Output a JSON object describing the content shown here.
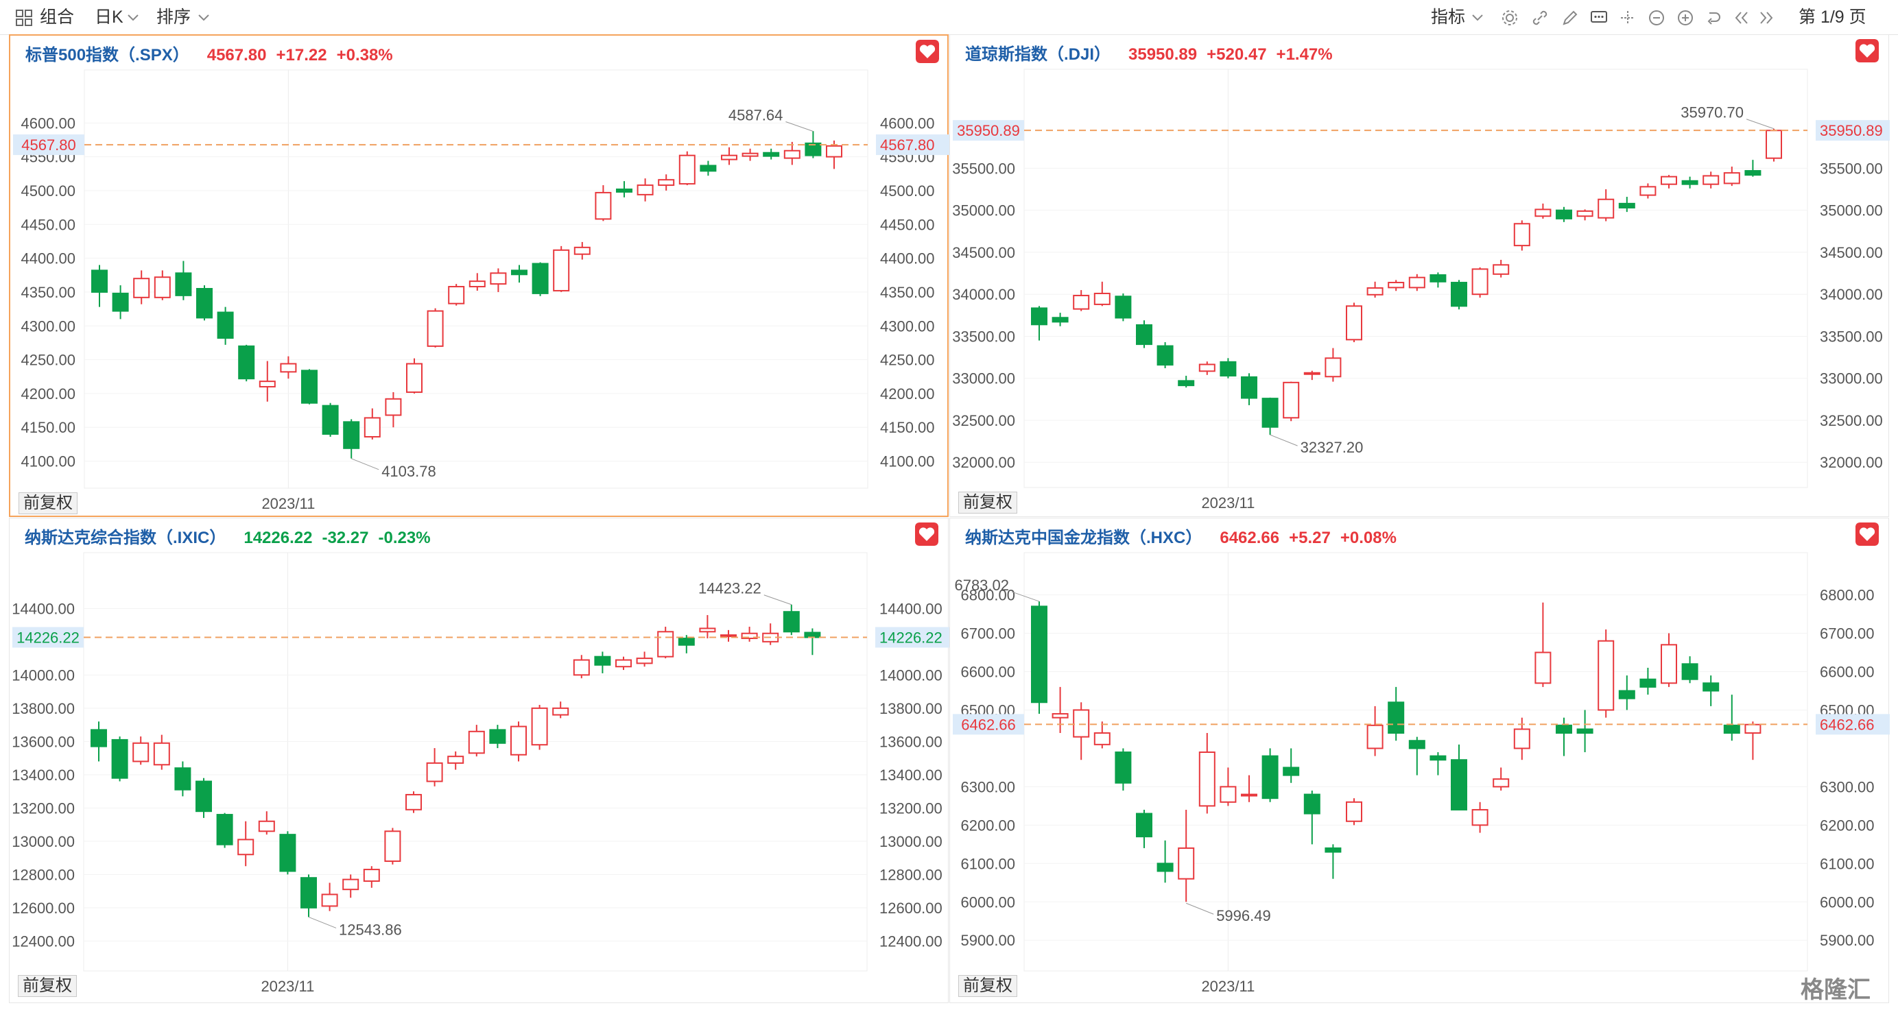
{
  "toolbar": {
    "combo_label": "组合",
    "period_label": "日K",
    "sort_label": "排序",
    "indicator_label": "指标",
    "page_label": "第 1/9 页"
  },
  "common": {
    "adjust_label": "前复权",
    "x_tick_label": "2023/11"
  },
  "colors": {
    "up": "#e8383d",
    "down": "#0aa04a",
    "title_blue": "#1f5fa8",
    "accent_orange": "#f5a35b",
    "grid": "#ececec",
    "price_line": "#f0a060",
    "badge_bg": "#dcebfa"
  },
  "icons": [
    "grid-icon",
    "chevron-down-icon",
    "gear-icon",
    "link-icon",
    "pencil-icon",
    "comment-icon",
    "crosshair-icon",
    "minus-circle-icon",
    "plus-circle-icon",
    "undo-icon",
    "double-left-icon",
    "double-right-icon",
    "heart-icon"
  ],
  "watermark": "格隆汇",
  "panels": [
    {
      "id": "spx",
      "name": "标普500指数（.SPX）",
      "last": "4567.80",
      "change": "+17.22",
      "pct": "+0.38%",
      "direction": "up",
      "last_label": "4567.80",
      "y_ticks": [
        "4600.00",
        "4550.00",
        "4500.00",
        "4450.00",
        "4400.00",
        "4350.00",
        "4300.00",
        "4250.00",
        "4200.00",
        "4150.00",
        "4100.00"
      ],
      "high_label": "4587.64",
      "low_label": "4103.78",
      "chart_data": {
        "type": "candlestick",
        "ylim": [
          4060,
          4650
        ],
        "high_value": 4587.64,
        "low_value": 4103.78,
        "current": 4567.8,
        "candles": [
          [
            4382,
            4350,
            4390,
            4328
          ],
          [
            4348,
            4322,
            4360,
            4310
          ],
          [
            4342,
            4370,
            4382,
            4332
          ],
          [
            4342,
            4372,
            4382,
            4338
          ],
          [
            4378,
            4345,
            4396,
            4338
          ],
          [
            4355,
            4312,
            4360,
            4308
          ],
          [
            4320,
            4282,
            4328,
            4272
          ],
          [
            4270,
            4222,
            4272,
            4218
          ],
          [
            4210,
            4218,
            4248,
            4188
          ],
          [
            4232,
            4244,
            4255,
            4222
          ],
          [
            4234,
            4186,
            4236,
            4184
          ],
          [
            4182,
            4140,
            4186,
            4136
          ],
          [
            4158,
            4119,
            4162,
            4104
          ],
          [
            4136,
            4164,
            4178,
            4132
          ],
          [
            4168,
            4192,
            4202,
            4150
          ],
          [
            4202,
            4244,
            4252,
            4200
          ],
          [
            4270,
            4322,
            4326,
            4268
          ],
          [
            4333,
            4358,
            4362,
            4330
          ],
          [
            4358,
            4366,
            4378,
            4352
          ],
          [
            4362,
            4378,
            4385,
            4350
          ],
          [
            4382,
            4376,
            4390,
            4364
          ],
          [
            4392,
            4348,
            4394,
            4344
          ],
          [
            4352,
            4412,
            4418,
            4350
          ],
          [
            4406,
            4416,
            4424,
            4398
          ],
          [
            4458,
            4497,
            4508,
            4455
          ],
          [
            4502,
            4498,
            4514,
            4490
          ],
          [
            4494,
            4508,
            4518,
            4484
          ],
          [
            4508,
            4516,
            4524,
            4500
          ],
          [
            4510,
            4552,
            4558,
            4508
          ],
          [
            4537,
            4529,
            4544,
            4522
          ],
          [
            4546,
            4552,
            4564,
            4538
          ],
          [
            4551,
            4555,
            4562,
            4544
          ],
          [
            4556,
            4551,
            4562,
            4546
          ],
          [
            4548,
            4559,
            4572,
            4538
          ],
          [
            4570,
            4552,
            4588,
            4548
          ],
          [
            4550,
            4566,
            4574,
            4532
          ]
        ]
      }
    },
    {
      "id": "dji",
      "name": "道琼斯指数（.DJI）",
      "last": "35950.89",
      "change": "+520.47",
      "pct": "+1.47%",
      "direction": "up",
      "last_label": "35950.89",
      "y_ticks": [
        "35500.00",
        "35000.00",
        "34500.00",
        "34000.00",
        "33500.00",
        "33000.00",
        "32500.00",
        "32000.00"
      ],
      "high_label": "35970.70",
      "low_label": "32327.20",
      "chart_data": {
        "type": "candlestick",
        "ylim": [
          31700,
          36450
        ],
        "high_value": 35970.7,
        "low_value": 32327.2,
        "current": 35950.89,
        "candles": [
          [
            33835,
            33640,
            33860,
            33450
          ],
          [
            33722,
            33672,
            33780,
            33620
          ],
          [
            33825,
            33985,
            34050,
            33800
          ],
          [
            33880,
            34010,
            34150,
            33860
          ],
          [
            33975,
            33720,
            34010,
            33680
          ],
          [
            33635,
            33405,
            33690,
            33360
          ],
          [
            33385,
            33160,
            33430,
            33120
          ],
          [
            32970,
            32915,
            33030,
            32890
          ],
          [
            33085,
            33165,
            33200,
            33040
          ],
          [
            33195,
            33030,
            33240,
            33000
          ],
          [
            33015,
            32765,
            33060,
            32680
          ],
          [
            32760,
            32420,
            32770,
            32327
          ],
          [
            32530,
            32950,
            32960,
            32490
          ],
          [
            33050,
            33065,
            33090,
            32980
          ],
          [
            33020,
            33240,
            33360,
            32960
          ],
          [
            33460,
            33860,
            33900,
            33430
          ],
          [
            33995,
            34075,
            34150,
            33960
          ],
          [
            34080,
            34140,
            34170,
            34040
          ],
          [
            34080,
            34200,
            34240,
            34040
          ],
          [
            34230,
            34150,
            34260,
            34080
          ],
          [
            34140,
            33860,
            34170,
            33820
          ],
          [
            34000,
            34300,
            34320,
            33960
          ],
          [
            34240,
            34350,
            34410,
            34200
          ],
          [
            34580,
            34840,
            34880,
            34520
          ],
          [
            34930,
            35010,
            35080,
            34900
          ],
          [
            35000,
            34900,
            35040,
            34860
          ],
          [
            34930,
            34990,
            35010,
            34880
          ],
          [
            34910,
            35130,
            35250,
            34870
          ],
          [
            35080,
            35030,
            35160,
            34980
          ],
          [
            35180,
            35280,
            35320,
            35140
          ],
          [
            35310,
            35400,
            35420,
            35260
          ],
          [
            35350,
            35310,
            35400,
            35260
          ],
          [
            35310,
            35410,
            35460,
            35260
          ],
          [
            35320,
            35445,
            35520,
            35290
          ],
          [
            35470,
            35420,
            35600,
            35400
          ],
          [
            35620,
            35950,
            35970,
            35580
          ]
        ]
      }
    },
    {
      "id": "ixic",
      "name": "纳斯达克综合指数（.IXIC）",
      "last": "14226.22",
      "change": "-32.27",
      "pct": "-0.23%",
      "direction": "down",
      "last_label": "14226.22",
      "y_ticks": [
        "14400.00",
        "14000.00",
        "13800.00",
        "13600.00",
        "13400.00",
        "13200.00",
        "13000.00",
        "12800.00",
        "12600.00",
        "12400.00"
      ],
      "high_label": "14423.22",
      "low_label": "12543.86",
      "chart_data": {
        "type": "candlestick",
        "ylim": [
          12220,
          14620
        ],
        "high_value": 14423.22,
        "low_value": 12543.86,
        "current": 14226.22,
        "candles": [
          [
            13670,
            13570,
            13720,
            13480
          ],
          [
            13610,
            13380,
            13630,
            13360
          ],
          [
            13480,
            13590,
            13630,
            13460
          ],
          [
            13460,
            13590,
            13640,
            13430
          ],
          [
            13440,
            13310,
            13480,
            13270
          ],
          [
            13360,
            13180,
            13380,
            13140
          ],
          [
            13160,
            12980,
            13170,
            12960
          ],
          [
            12920,
            13010,
            13120,
            12850
          ],
          [
            13060,
            13120,
            13180,
            13040
          ],
          [
            13040,
            12820,
            13060,
            12800
          ],
          [
            12780,
            12600,
            12800,
            12544
          ],
          [
            12610,
            12680,
            12750,
            12580
          ],
          [
            12710,
            12770,
            12800,
            12660
          ],
          [
            12760,
            12830,
            12850,
            12720
          ],
          [
            12880,
            13060,
            13080,
            12860
          ],
          [
            13190,
            13280,
            13300,
            13170
          ],
          [
            13360,
            13470,
            13560,
            13330
          ],
          [
            13470,
            13510,
            13540,
            13430
          ],
          [
            13530,
            13660,
            13700,
            13510
          ],
          [
            13670,
            13590,
            13700,
            13560
          ],
          [
            13520,
            13690,
            13720,
            13480
          ],
          [
            13580,
            13800,
            13820,
            13550
          ],
          [
            13760,
            13800,
            13840,
            13740
          ],
          [
            14000,
            14090,
            14120,
            13980
          ],
          [
            14110,
            14060,
            14140,
            14010
          ],
          [
            14050,
            14090,
            14110,
            14030
          ],
          [
            14070,
            14100,
            14140,
            14050
          ],
          [
            14110,
            14260,
            14290,
            14100
          ],
          [
            14220,
            14180,
            14240,
            14130
          ],
          [
            14260,
            14280,
            14360,
            14220
          ],
          [
            14240,
            14240,
            14270,
            14200
          ],
          [
            14220,
            14250,
            14290,
            14200
          ],
          [
            14200,
            14250,
            14310,
            14180
          ],
          [
            14380,
            14260,
            14423,
            14240
          ],
          [
            14255,
            14226,
            14280,
            14120
          ]
        ]
      }
    },
    {
      "id": "hxc",
      "name": "纳斯达克中国金龙指数（.HXC）",
      "last": "6462.66",
      "change": "+5.27",
      "pct": "+0.08%",
      "direction": "up",
      "last_label": "6462.66",
      "y_ticks": [
        "6800.00",
        "6700.00",
        "6600.00",
        "6500.00",
        "6300.00",
        "6200.00",
        "6100.00",
        "6000.00",
        "5900.00"
      ],
      "high_label": "6783.02",
      "low_label": "5996.49",
      "chart_data": {
        "type": "candlestick",
        "ylim": [
          5820,
          6860
        ],
        "high_value": 6783.02,
        "low_value": 5996.49,
        "current": 6462.66,
        "candles": [
          [
            6770,
            6520,
            6783,
            6490
          ],
          [
            6480,
            6490,
            6560,
            6440
          ],
          [
            6430,
            6500,
            6520,
            6370
          ],
          [
            6410,
            6440,
            6470,
            6400
          ],
          [
            6390,
            6310,
            6400,
            6290
          ],
          [
            6230,
            6170,
            6240,
            6140
          ],
          [
            6100,
            6080,
            6160,
            6050
          ],
          [
            6060,
            6140,
            6240,
            6000
          ],
          [
            6250,
            6390,
            6440,
            6230
          ],
          [
            6260,
            6300,
            6350,
            6250
          ],
          [
            6280,
            6280,
            6330,
            6260
          ],
          [
            6380,
            6270,
            6400,
            6260
          ],
          [
            6350,
            6330,
            6400,
            6310
          ],
          [
            6280,
            6230,
            6290,
            6150
          ],
          [
            6140,
            6130,
            6150,
            6060
          ],
          [
            6210,
            6260,
            6270,
            6200
          ],
          [
            6400,
            6460,
            6510,
            6380
          ],
          [
            6520,
            6440,
            6560,
            6420
          ],
          [
            6420,
            6400,
            6430,
            6330
          ],
          [
            6380,
            6370,
            6390,
            6330
          ],
          [
            6370,
            6240,
            6410,
            6240
          ],
          [
            6200,
            6240,
            6260,
            6180
          ],
          [
            6300,
            6320,
            6350,
            6290
          ],
          [
            6400,
            6450,
            6480,
            6370
          ],
          [
            6570,
            6650,
            6780,
            6560
          ],
          [
            6460,
            6440,
            6480,
            6380
          ],
          [
            6450,
            6440,
            6500,
            6390
          ],
          [
            6500,
            6680,
            6710,
            6480
          ],
          [
            6550,
            6530,
            6590,
            6500
          ],
          [
            6580,
            6560,
            6610,
            6540
          ],
          [
            6570,
            6670,
            6700,
            6560
          ],
          [
            6620,
            6580,
            6640,
            6570
          ],
          [
            6570,
            6550,
            6590,
            6510
          ],
          [
            6460,
            6440,
            6540,
            6420
          ],
          [
            6440,
            6462,
            6470,
            6370
          ]
        ]
      }
    }
  ]
}
